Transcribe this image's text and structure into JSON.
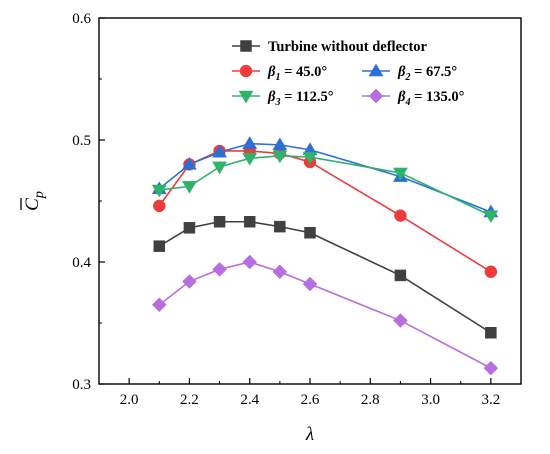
{
  "chart_data": {
    "type": "line",
    "xlabel": "λ",
    "ylabel": "C_p",
    "ylabel_parts": {
      "base": "C",
      "sub": "p"
    },
    "xlim": [
      1.9,
      3.3
    ],
    "ylim": [
      0.3,
      0.6
    ],
    "xticks": [
      2.0,
      2.2,
      2.4,
      2.6,
      2.8,
      3.0,
      3.2
    ],
    "yticks": [
      0.3,
      0.4,
      0.5,
      0.6
    ],
    "xtick_labels": [
      "2.0",
      "2.2",
      "2.4",
      "2.6",
      "2.8",
      "3.0",
      "3.2"
    ],
    "ytick_labels": [
      "0.3",
      "0.4",
      "0.5",
      "0.6"
    ],
    "grid": false,
    "legend_position": "top-right",
    "series": [
      {
        "name": "Turbine without deflector",
        "legend": {
          "text": "Turbine without deflector"
        },
        "color": "#404040",
        "marker": "square",
        "x": [
          2.1,
          2.2,
          2.3,
          2.4,
          2.5,
          2.6,
          2.9,
          3.2
        ],
        "y": [
          0.413,
          0.428,
          0.433,
          0.433,
          0.429,
          0.424,
          0.389,
          0.342
        ]
      },
      {
        "name": "β1 = 45.0°",
        "legend": {
          "sym": "β",
          "sub": "1",
          "rest": " = 45.0°"
        },
        "color": "#ee3b3b",
        "marker": "circle",
        "x": [
          2.1,
          2.2,
          2.3,
          2.4,
          2.5,
          2.6,
          2.9,
          3.2
        ],
        "y": [
          0.446,
          0.48,
          0.491,
          0.491,
          0.489,
          0.482,
          0.438,
          0.392
        ]
      },
      {
        "name": "β2 = 67.5°",
        "legend": {
          "sym": "β",
          "sub": "2",
          "rest": " = 67.5°"
        },
        "color": "#2e6fd6",
        "marker": "triangle-up",
        "x": [
          2.1,
          2.2,
          2.3,
          2.4,
          2.5,
          2.6,
          2.9,
          3.2
        ],
        "y": [
          0.46,
          0.48,
          0.49,
          0.497,
          0.496,
          0.492,
          0.47,
          0.441
        ]
      },
      {
        "name": "β3 = 112.5°",
        "legend": {
          "sym": "β",
          "sub": "3",
          "rest": " = 112.5°"
        },
        "color": "#2fb36a",
        "marker": "triangle-down",
        "x": [
          2.1,
          2.2,
          2.3,
          2.4,
          2.5,
          2.6,
          2.9,
          3.2
        ],
        "y": [
          0.459,
          0.462,
          0.478,
          0.485,
          0.487,
          0.486,
          0.473,
          0.438
        ]
      },
      {
        "name": "β4 = 135.0°",
        "legend": {
          "sym": "β",
          "sub": "4",
          "rest": " = 135.0°"
        },
        "color": "#b66ee0",
        "marker": "diamond",
        "x": [
          2.1,
          2.2,
          2.3,
          2.4,
          2.5,
          2.6,
          2.9,
          3.2
        ],
        "y": [
          0.365,
          0.384,
          0.394,
          0.4,
          0.392,
          0.382,
          0.352,
          0.313
        ]
      }
    ]
  }
}
